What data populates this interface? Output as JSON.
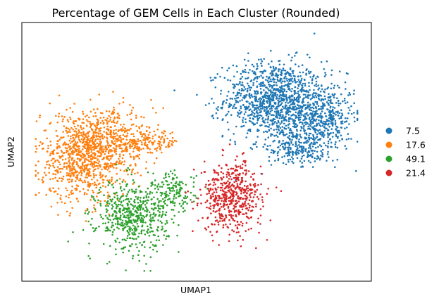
{
  "chart_data": {
    "type": "scatter",
    "title": "Percentage of GEM Cells in Each Cluster (Rounded)",
    "xlabel": "UMAP1",
    "ylabel": "UMAP2",
    "xticks": [],
    "yticks": [],
    "grid": false,
    "legend_position": "right",
    "series": [
      {
        "name": "7.5",
        "color": "#1f77b4",
        "clusters": [
          {
            "cx": 0.74,
            "cy": 0.72,
            "sx": 0.09,
            "sy": 0.095,
            "n": 1100
          },
          {
            "cx": 0.89,
            "cy": 0.64,
            "sx": 0.06,
            "sy": 0.09,
            "n": 500
          },
          {
            "cx": 0.8,
            "cy": 0.52,
            "sx": 0.05,
            "sy": 0.04,
            "n": 200
          }
        ]
      },
      {
        "name": "17.6",
        "color": "#ff7f0e",
        "clusters": [
          {
            "cx": 0.15,
            "cy": 0.48,
            "sx": 0.08,
            "sy": 0.11,
            "n": 900
          },
          {
            "cx": 0.25,
            "cy": 0.55,
            "sx": 0.07,
            "sy": 0.07,
            "n": 300
          },
          {
            "cx": 0.36,
            "cy": 0.54,
            "sx": 0.05,
            "sy": 0.03,
            "n": 120
          }
        ]
      },
      {
        "name": "49.1",
        "color": "#2ca02c",
        "clusters": [
          {
            "cx": 0.3,
            "cy": 0.23,
            "sx": 0.065,
            "sy": 0.085,
            "n": 550
          },
          {
            "cx": 0.43,
            "cy": 0.33,
            "sx": 0.04,
            "sy": 0.05,
            "n": 150
          }
        ]
      },
      {
        "name": "21.4",
        "color": "#d62728",
        "clusters": [
          {
            "cx": 0.61,
            "cy": 0.31,
            "sx": 0.055,
            "sy": 0.085,
            "n": 550
          }
        ]
      }
    ]
  }
}
